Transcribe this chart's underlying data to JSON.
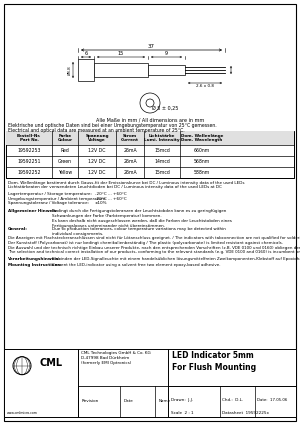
{
  "title": "LED Indicator 5mm\nFor Flush Mounting",
  "company_sub": "CML Technologies GmbH & Co. KG\nD-47998 Bad Dürkheim\n(formerly EMI Optronics)",
  "drawn": "J.J.",
  "checked": "D.L.",
  "date": "17.05.06",
  "scale": "2 : 1",
  "datasheet": "19592225x",
  "table_headers": [
    "Bestell-Nr.\nPart No.",
    "Farbe\nColour",
    "Spannung\nVoltage",
    "Strom\nCurrent",
    "Lichtstärke\nLumi. Intensity",
    "Dom. Wellenlänge\nDom. Wavelength"
  ],
  "table_data": [
    [
      "19592253",
      "Red",
      "12V DC",
      "26mA",
      "15mcd",
      "660nm"
    ],
    [
      "19592251",
      "Green",
      "12V DC",
      "26mA",
      "14mcd",
      "568nm"
    ],
    [
      "19592252",
      "Yellow",
      "12V DC",
      "26mA",
      "15mcd",
      "588nm"
    ]
  ],
  "dim_note": "Alle Maße in mm / All dimensions are in mm",
  "elec_note1": "Elektrische und optische Daten sind bei einer Umgebungstemperatur von 25°C gemessen.",
  "elec_note2": "Electrical and optical data are measured at an ambient temperature of 25°C.",
  "dom_wl_note1": "Dom. Wellenlänge bestimmt durch Gauss-fit der Emissionskurve bei DC / Luminous intensity data of the used LEDs",
  "dom_wl_note2": "Lichtstärkeaten der verwendeten Leuchtdioden bei DC / Luminous intensity data of the used LEDs at DC",
  "storage_label": "Lagertemperatur / Storage temperature:",
  "ambient_label": "Umgebungstemperatur / Ambient temperature:",
  "voltage_label": "Spannungstoleranz / Voltage tolerance:",
  "storage_temp": "-20°C ... +60°C",
  "ambient_temp": "-20°C ... +60°C",
  "voltage_tol": "±10%",
  "allg_hinweis": "Allgemeiner Hinweis:",
  "allg_text": "Bedingt durch die Fertigungstoleranzen der Leuchtstobden kann es zu geringfügigen\nSchwankungen der Farbe (Farbtemperatur) kommen.\nEs kann deshalb nicht ausgeschlossen werden, daß die Farben der Leuchtstobden eines\nFertigungslooses untereinander nicht übereinstimmen.",
  "general_label": "General:",
  "general_text": "Due to production tolerances, colour temperature variations may be detected within\nindividual consignments.",
  "note1": "Die Anzeigen mit Flachsteckeranschlüssen sind nicht für Lötanschluss geeignet. / The indicators with tabconnection are not qualified for soldering.",
  "note2": "Der Kunststoff (Polycarbonat) ist nur bedingt chemikalienbeständig / The plastic (polycarbonate) is limited resistant against chemicals.",
  "note3": "Die Auswahl und der technisch richtige Einbau unserer Produkte, nach den entsprechenden Vorschriften (z.B. VDE 0100 und 0160) obliegen dem Anwender /",
  "note3b": "The selection and technical correct installation of our products, conforming to the relevant standards (e.g. VDE 0100 and 0160) is incumbent on the user.",
  "verarbeitungshinweis_label": "Verarbeitungshinweis:",
  "verarbeitungshinweis_text": "Einbinden der LED-Signalleuchte mit einem handelsüblichen lösungsmittelfreien Zweikomponenten-Klebstoff auf Epoxidharz-Basis.",
  "mounting_label": "Mounting Instructions:",
  "mounting_text": "Cement the LED-indicator using a solvent free two element epoxy-based adhesive.",
  "bg_color": "#ffffff",
  "border_color": "#000000",
  "text_color": "#000000"
}
